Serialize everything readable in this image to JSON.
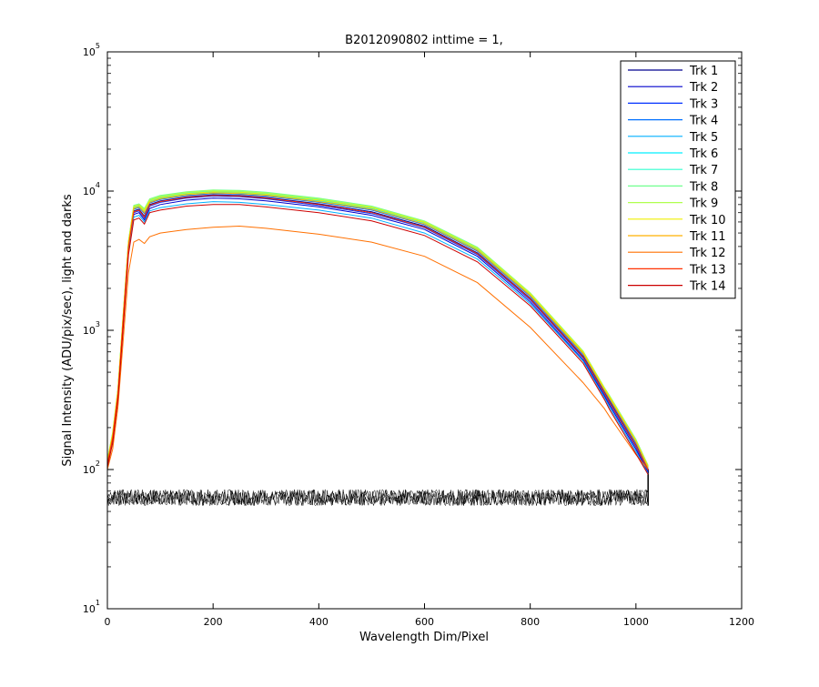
{
  "chart_data": {
    "type": "line",
    "title": "B2012090802 inttime = 1,",
    "xlabel": "Wavelength Dim/Pixel",
    "ylabel": "Signal Intensity (ADU/pix/sec), light and darks",
    "xlim": [
      0,
      1200
    ],
    "ylim": [
      10,
      100000
    ],
    "yscale": "log",
    "grid": false,
    "legend_position": "top-right",
    "x_ticks": [
      "0",
      "200",
      "400",
      "600",
      "800",
      "1000",
      "1200"
    ],
    "y_ticks": [
      {
        "base": "10",
        "exp": "1"
      },
      {
        "base": "10",
        "exp": "2"
      },
      {
        "base": "10",
        "exp": "3"
      },
      {
        "base": "10",
        "exp": "4"
      },
      {
        "base": "10",
        "exp": "5"
      }
    ],
    "x": [
      0,
      10,
      20,
      30,
      40,
      50,
      60,
      70,
      80,
      100,
      150,
      200,
      250,
      300,
      400,
      500,
      600,
      700,
      800,
      900,
      940,
      950,
      1000,
      1023
    ],
    "series": [
      {
        "name": "Trk 1",
        "color": "#00008f",
        "values": [
          110,
          170,
          350,
          1200,
          4000,
          7200,
          7400,
          6600,
          8000,
          8500,
          9100,
          9400,
          9300,
          9000,
          8100,
          7100,
          5600,
          3600,
          1700,
          650,
          360,
          310,
          150,
          100
        ]
      },
      {
        "name": "Trk 2",
        "color": "#0000cc",
        "values": [
          105,
          160,
          330,
          1150,
          3800,
          6800,
          7000,
          6200,
          7500,
          8000,
          8600,
          8900,
          8800,
          8500,
          7700,
          6700,
          5300,
          3400,
          1600,
          610,
          340,
          290,
          140,
          95
        ]
      },
      {
        "name": "Trk 3",
        "color": "#0030ff",
        "values": [
          108,
          165,
          340,
          1180,
          3900,
          7000,
          7200,
          6400,
          7800,
          8300,
          8900,
          9200,
          9100,
          8800,
          7900,
          6900,
          5450,
          3500,
          1650,
          630,
          350,
          300,
          145,
          97
        ]
      },
      {
        "name": "Trk 4",
        "color": "#0070ff",
        "values": [
          112,
          175,
          360,
          1250,
          4100,
          7400,
          7600,
          6900,
          8200,
          8700,
          9300,
          9600,
          9500,
          9200,
          8300,
          7300,
          5750,
          3700,
          1750,
          670,
          370,
          320,
          155,
          102
        ]
      },
      {
        "name": "Trk 5",
        "color": "#00b0ff",
        "values": [
          106,
          160,
          330,
          1100,
          3700,
          6500,
          6700,
          6000,
          7200,
          7600,
          8100,
          8400,
          8300,
          8000,
          7300,
          6400,
          5000,
          3250,
          1550,
          600,
          330,
          280,
          135,
          93
        ]
      },
      {
        "name": "Trk 6",
        "color": "#00efff",
        "values": [
          114,
          178,
          370,
          1280,
          4200,
          7600,
          7800,
          7100,
          8400,
          8900,
          9500,
          9800,
          9700,
          9400,
          8500,
          7500,
          5900,
          3800,
          1800,
          690,
          380,
          330,
          160,
          104
        ]
      },
      {
        "name": "Trk 7",
        "color": "#30ffcf",
        "values": [
          116,
          180,
          375,
          1300,
          4300,
          7700,
          7900,
          7300,
          8600,
          9100,
          9700,
          10000,
          9900,
          9600,
          8700,
          7650,
          6000,
          3870,
          1830,
          700,
          385,
          335,
          162,
          105
        ]
      },
      {
        "name": "Trk 8",
        "color": "#70ff8f",
        "values": [
          118,
          185,
          380,
          1320,
          4400,
          7900,
          8100,
          7500,
          8800,
          9300,
          9900,
          10200,
          10100,
          9800,
          8900,
          7800,
          6100,
          3950,
          1860,
          710,
          390,
          340,
          165,
          107
        ]
      },
      {
        "name": "Trk 9",
        "color": "#b0ff4f",
        "values": [
          117,
          182,
          378,
          1310,
          4350,
          7800,
          8000,
          7400,
          8700,
          9200,
          9800,
          10100,
          10000,
          9700,
          8800,
          7720,
          6050,
          3900,
          1850,
          705,
          388,
          338,
          163,
          106
        ]
      },
      {
        "name": "Trk 10",
        "color": "#efef00",
        "values": [
          115,
          180,
          372,
          1290,
          4250,
          7700,
          7900,
          7200,
          8500,
          9000,
          9600,
          9900,
          9800,
          9500,
          8600,
          7600,
          5950,
          3850,
          1820,
          695,
          383,
          333,
          160,
          105
        ]
      },
      {
        "name": "Trk 11",
        "color": "#ffb000",
        "values": [
          113,
          176,
          365,
          1260,
          4150,
          7500,
          7700,
          7000,
          8300,
          8800,
          9400,
          9700,
          9600,
          9300,
          8400,
          7400,
          5800,
          3750,
          1780,
          680,
          375,
          325,
          158,
          103
        ]
      },
      {
        "name": "Trk 12",
        "color": "#ff7000",
        "values": [
          100,
          140,
          280,
          850,
          2600,
          4300,
          4500,
          4200,
          4700,
          5000,
          5300,
          5500,
          5600,
          5400,
          4900,
          4300,
          3400,
          2200,
          1050,
          420,
          275,
          240,
          128,
          100
        ]
      },
      {
        "name": "Trk 13",
        "color": "#ff3000",
        "values": [
          110,
          168,
          345,
          1200,
          3950,
          7100,
          7300,
          6500,
          7900,
          8400,
          9000,
          9300,
          9200,
          8900,
          8000,
          7000,
          5500,
          3550,
          1680,
          640,
          355,
          305,
          148,
          99
        ]
      },
      {
        "name": "Trk 14",
        "color": "#cc0000",
        "values": [
          104,
          155,
          320,
          1050,
          3500,
          6200,
          6400,
          5800,
          7000,
          7300,
          7800,
          8000,
          8000,
          7700,
          7000,
          6100,
          4800,
          3100,
          1500,
          580,
          320,
          270,
          130,
          92
        ]
      }
    ],
    "dark_band": {
      "color": "#000000",
      "x_start": 0,
      "x_end": 1023,
      "y_low": 55,
      "y_high": 72
    }
  }
}
